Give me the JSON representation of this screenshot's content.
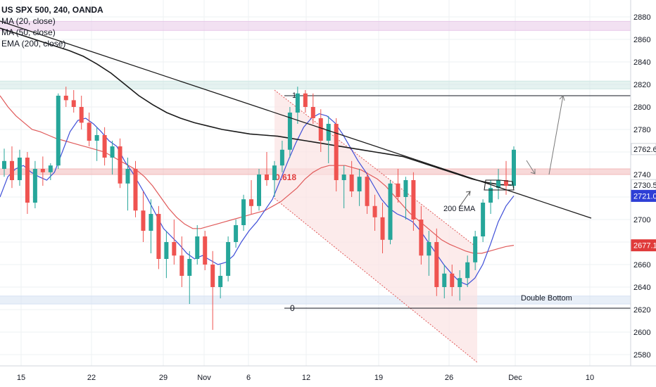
{
  "legend": {
    "title": "US SPX 500, 240, OANDA",
    "ma20": "MA (20, close)",
    "ma50": "MA (50, close)",
    "ema200": "EMA (200, close)"
  },
  "chart_data": {
    "type": "candlestick",
    "title": "US SPX 500, 240, OANDA",
    "ylim": [
      2570,
      2895
    ],
    "y_ticks": [
      2580,
      2600,
      2620,
      2640,
      2660,
      2680,
      2700,
      2720,
      2740,
      2760,
      2780,
      2800,
      2820,
      2840,
      2860,
      2880
    ],
    "x_ticks": [
      "15",
      "22",
      "29",
      "Nov",
      "6",
      "12",
      "19",
      "26",
      "Dec",
      "10"
    ],
    "grid": true,
    "price_labels": [
      {
        "value": "2762.6",
        "price": 2762.6,
        "color": "#ffffff"
      },
      {
        "value": "2730.5",
        "price": 2730.5,
        "color": "#ffffff"
      },
      {
        "value": "2721.0",
        "price": 2721.0,
        "color": "#2e3fd6"
      },
      {
        "value": "2677.1",
        "price": 2677.1,
        "color": "#e03b3b"
      }
    ],
    "annotations": {
      "fib_1": "1",
      "fib_0618": "0.618",
      "fib_0": "0",
      "ema_label": "200 EMA",
      "double_bottom": "Double Bottom"
    },
    "horizontal_zones": [
      {
        "name": "resistance-zone-top",
        "from": 2868,
        "to": 2876,
        "color": "#e7c8e8"
      },
      {
        "name": "resistance-zone-2820",
        "from": 2816,
        "to": 2823,
        "color": "#cfe8e4"
      },
      {
        "name": "fib-0618-zone",
        "from": 2740,
        "to": 2745,
        "color": "#f2b9b9"
      },
      {
        "name": "support-zone-2630",
        "from": 2625,
        "to": 2632,
        "color": "#d6e2f3"
      }
    ],
    "fib_levels": {
      "level_1": 2816,
      "level_0618": 2743,
      "level_0": 2625
    },
    "candles": [
      {
        "o": 2745,
        "h": 2763,
        "l": 2738,
        "c": 2752
      },
      {
        "o": 2752,
        "h": 2765,
        "l": 2728,
        "c": 2735
      },
      {
        "o": 2735,
        "h": 2762,
        "l": 2730,
        "c": 2755
      },
      {
        "o": 2755,
        "h": 2760,
        "l": 2705,
        "c": 2715
      },
      {
        "o": 2715,
        "h": 2752,
        "l": 2710,
        "c": 2745
      },
      {
        "o": 2745,
        "h": 2756,
        "l": 2730,
        "c": 2742
      },
      {
        "o": 2742,
        "h": 2750,
        "l": 2735,
        "c": 2748
      },
      {
        "o": 2748,
        "h": 2812,
        "l": 2745,
        "c": 2810
      },
      {
        "o": 2810,
        "h": 2818,
        "l": 2800,
        "c": 2806
      },
      {
        "o": 2806,
        "h": 2815,
        "l": 2795,
        "c": 2800
      },
      {
        "o": 2800,
        "h": 2810,
        "l": 2780,
        "c": 2786
      },
      {
        "o": 2786,
        "h": 2795,
        "l": 2765,
        "c": 2770
      },
      {
        "o": 2770,
        "h": 2782,
        "l": 2752,
        "c": 2775
      },
      {
        "o": 2775,
        "h": 2782,
        "l": 2748,
        "c": 2755
      },
      {
        "o": 2755,
        "h": 2770,
        "l": 2740,
        "c": 2765
      },
      {
        "o": 2765,
        "h": 2772,
        "l": 2728,
        "c": 2732
      },
      {
        "o": 2732,
        "h": 2755,
        "l": 2708,
        "c": 2745
      },
      {
        "o": 2745,
        "h": 2752,
        "l": 2702,
        "c": 2708
      },
      {
        "o": 2708,
        "h": 2725,
        "l": 2680,
        "c": 2690
      },
      {
        "o": 2690,
        "h": 2718,
        "l": 2670,
        "c": 2705
      },
      {
        "o": 2705,
        "h": 2712,
        "l": 2656,
        "c": 2665
      },
      {
        "o": 2665,
        "h": 2690,
        "l": 2648,
        "c": 2680
      },
      {
        "o": 2680,
        "h": 2700,
        "l": 2660,
        "c": 2668
      },
      {
        "o": 2668,
        "h": 2685,
        "l": 2640,
        "c": 2650
      },
      {
        "o": 2650,
        "h": 2672,
        "l": 2625,
        "c": 2665
      },
      {
        "o": 2665,
        "h": 2695,
        "l": 2660,
        "c": 2685
      },
      {
        "o": 2685,
        "h": 2690,
        "l": 2655,
        "c": 2660
      },
      {
        "o": 2660,
        "h": 2672,
        "l": 2602,
        "c": 2640
      },
      {
        "o": 2640,
        "h": 2660,
        "l": 2630,
        "c": 2650
      },
      {
        "o": 2650,
        "h": 2685,
        "l": 2645,
        "c": 2680
      },
      {
        "o": 2680,
        "h": 2700,
        "l": 2675,
        "c": 2695
      },
      {
        "o": 2695,
        "h": 2722,
        "l": 2690,
        "c": 2718
      },
      {
        "o": 2718,
        "h": 2735,
        "l": 2705,
        "c": 2712
      },
      {
        "o": 2712,
        "h": 2745,
        "l": 2708,
        "c": 2740
      },
      {
        "o": 2740,
        "h": 2760,
        "l": 2730,
        "c": 2735
      },
      {
        "o": 2735,
        "h": 2752,
        "l": 2720,
        "c": 2748
      },
      {
        "o": 2748,
        "h": 2770,
        "l": 2742,
        "c": 2762
      },
      {
        "o": 2762,
        "h": 2800,
        "l": 2755,
        "c": 2795
      },
      {
        "o": 2795,
        "h": 2818,
        "l": 2785,
        "c": 2812
      },
      {
        "o": 2812,
        "h": 2815,
        "l": 2795,
        "c": 2800
      },
      {
        "o": 2800,
        "h": 2812,
        "l": 2785,
        "c": 2790
      },
      {
        "o": 2790,
        "h": 2798,
        "l": 2760,
        "c": 2770
      },
      {
        "o": 2770,
        "h": 2792,
        "l": 2750,
        "c": 2785
      },
      {
        "o": 2785,
        "h": 2790,
        "l": 2725,
        "c": 2735
      },
      {
        "o": 2735,
        "h": 2748,
        "l": 2710,
        "c": 2740
      },
      {
        "o": 2740,
        "h": 2752,
        "l": 2720,
        "c": 2725
      },
      {
        "o": 2725,
        "h": 2745,
        "l": 2712,
        "c": 2738
      },
      {
        "o": 2738,
        "h": 2742,
        "l": 2705,
        "c": 2712
      },
      {
        "o": 2712,
        "h": 2722,
        "l": 2690,
        "c": 2702
      },
      {
        "o": 2702,
        "h": 2715,
        "l": 2670,
        "c": 2682
      },
      {
        "o": 2682,
        "h": 2735,
        "l": 2678,
        "c": 2732
      },
      {
        "o": 2732,
        "h": 2745,
        "l": 2715,
        "c": 2720
      },
      {
        "o": 2720,
        "h": 2738,
        "l": 2700,
        "c": 2735
      },
      {
        "o": 2735,
        "h": 2742,
        "l": 2690,
        "c": 2700
      },
      {
        "o": 2700,
        "h": 2712,
        "l": 2660,
        "c": 2668
      },
      {
        "o": 2668,
        "h": 2690,
        "l": 2650,
        "c": 2680
      },
      {
        "o": 2680,
        "h": 2692,
        "l": 2632,
        "c": 2640
      },
      {
        "o": 2640,
        "h": 2660,
        "l": 2630,
        "c": 2652
      },
      {
        "o": 2652,
        "h": 2660,
        "l": 2632,
        "c": 2640
      },
      {
        "o": 2640,
        "h": 2655,
        "l": 2628,
        "c": 2648
      },
      {
        "o": 2648,
        "h": 2668,
        "l": 2640,
        "c": 2662
      },
      {
        "o": 2662,
        "h": 2690,
        "l": 2655,
        "c": 2685
      },
      {
        "o": 2685,
        "h": 2718,
        "l": 2680,
        "c": 2715
      },
      {
        "o": 2715,
        "h": 2735,
        "l": 2705,
        "c": 2728
      },
      {
        "o": 2728,
        "h": 2745,
        "l": 2718,
        "c": 2735
      },
      {
        "o": 2735,
        "h": 2752,
        "l": 2722,
        "c": 2730
      },
      {
        "o": 2730,
        "h": 2765,
        "l": 2728,
        "c": 2762
      }
    ],
    "ma20": [
      2720,
      2738,
      2745,
      2748,
      2742,
      2738,
      2735,
      2742,
      2760,
      2778,
      2788,
      2790,
      2785,
      2778,
      2770,
      2765,
      2752,
      2742,
      2730,
      2718,
      2705,
      2692,
      2685,
      2678,
      2670,
      2665,
      2668,
      2664,
      2660,
      2662,
      2668,
      2680,
      2690,
      2698,
      2708,
      2718,
      2735,
      2752,
      2768,
      2782,
      2790,
      2794,
      2792,
      2786,
      2776,
      2764,
      2752,
      2742,
      2730,
      2718,
      2710,
      2705,
      2702,
      2698,
      2690,
      2680,
      2670,
      2660,
      2652,
      2645,
      2642,
      2648,
      2660,
      2678,
      2698,
      2712,
      2721
    ],
    "ma50": [
      2810,
      2800,
      2792,
      2786,
      2780,
      2778,
      2775,
      2772,
      2770,
      2768,
      2766,
      2764,
      2762,
      2760,
      2756,
      2752,
      2748,
      2744,
      2738,
      2730,
      2720,
      2710,
      2702,
      2696,
      2692,
      2692,
      2694,
      2696,
      2698,
      2700,
      2702,
      2704,
      2706,
      2708,
      2712,
      2716,
      2722,
      2728,
      2736,
      2742,
      2746,
      2748,
      2748,
      2748,
      2746,
      2744,
      2740,
      2736,
      2730,
      2722,
      2714,
      2706,
      2700,
      2694,
      2688,
      2682,
      2678,
      2675,
      2672,
      2670,
      2670,
      2672,
      2674,
      2676,
      2677.1
    ],
    "ema200": [
      2870,
      2866,
      2862,
      2858,
      2854,
      2850,
      2845,
      2838,
      2830,
      2820,
      2810,
      2802,
      2795,
      2790,
      2786,
      2783,
      2780,
      2778,
      2776,
      2775,
      2774,
      2772,
      2770,
      2768,
      2766,
      2764,
      2762,
      2760,
      2758,
      2756,
      2752,
      2748,
      2744,
      2740,
      2736,
      2733,
      2731,
      2730.5
    ]
  }
}
